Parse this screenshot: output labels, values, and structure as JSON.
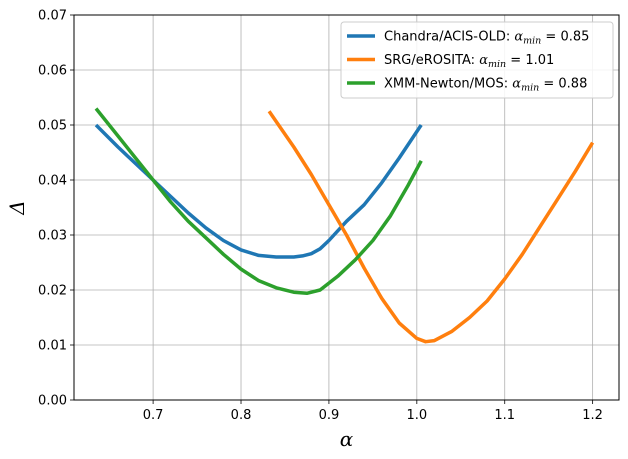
{
  "chart_data": {
    "type": "line",
    "xlabel": "α",
    "ylabel": "Δ",
    "xlim": [
      0.61,
      1.23
    ],
    "ylim": [
      0.0,
      0.07
    ],
    "xticks": [
      0.7,
      0.8,
      0.9,
      1.0,
      1.1,
      1.2
    ],
    "xtick_labels": [
      "0.7",
      "0.8",
      "0.9",
      "1.0",
      "1.1",
      "1.2"
    ],
    "yticks": [
      0.0,
      0.01,
      0.02,
      0.03,
      0.04,
      0.05,
      0.06,
      0.07
    ],
    "ytick_labels": [
      "0.00",
      "0.01",
      "0.02",
      "0.03",
      "0.04",
      "0.05",
      "0.06",
      "0.07"
    ],
    "grid": true,
    "legend_position": "top-right",
    "series": [
      {
        "name": "Chandra/ACIS-OLD",
        "legend_prefix": "Chandra/ACIS-OLD: ",
        "legend_value": "0.85",
        "color": "#1f77b4",
        "x": [
          0.635,
          0.66,
          0.68,
          0.7,
          0.72,
          0.74,
          0.76,
          0.78,
          0.8,
          0.82,
          0.84,
          0.86,
          0.87,
          0.88,
          0.89,
          0.9,
          0.92,
          0.94,
          0.96,
          0.98,
          1.005
        ],
        "y": [
          0.05,
          0.046,
          0.043,
          0.04,
          0.037,
          0.034,
          0.0313,
          0.029,
          0.0273,
          0.0263,
          0.026,
          0.026,
          0.0262,
          0.0266,
          0.0275,
          0.029,
          0.0325,
          0.0355,
          0.0395,
          0.044,
          0.05
        ]
      },
      {
        "name": "SRG/eROSITA",
        "legend_prefix": "SRG/eROSITA: ",
        "legend_value": "1.01",
        "color": "#ff7f0e",
        "x": [
          0.832,
          0.86,
          0.88,
          0.9,
          0.92,
          0.94,
          0.96,
          0.98,
          1.0,
          1.01,
          1.02,
          1.04,
          1.06,
          1.08,
          1.1,
          1.12,
          1.14,
          1.16,
          1.18,
          1.2
        ],
        "y": [
          0.0525,
          0.046,
          0.041,
          0.0355,
          0.03,
          0.024,
          0.0185,
          0.014,
          0.0112,
          0.0106,
          0.0108,
          0.0125,
          0.015,
          0.018,
          0.022,
          0.0265,
          0.0315,
          0.0365,
          0.0415,
          0.0468
        ]
      },
      {
        "name": "XMM-Newton/MOS",
        "legend_prefix": "XMM-Newton/MOS: ",
        "legend_value": "0.88",
        "color": "#2ca02c",
        "x": [
          0.635,
          0.66,
          0.68,
          0.7,
          0.72,
          0.74,
          0.76,
          0.78,
          0.8,
          0.82,
          0.84,
          0.86,
          0.875,
          0.89,
          0.91,
          0.93,
          0.95,
          0.97,
          0.99,
          1.005
        ],
        "y": [
          0.053,
          0.048,
          0.044,
          0.04,
          0.036,
          0.0325,
          0.0295,
          0.0265,
          0.0238,
          0.0217,
          0.0204,
          0.0196,
          0.0194,
          0.02,
          0.0225,
          0.0255,
          0.029,
          0.0335,
          0.039,
          0.0435
        ]
      }
    ]
  }
}
